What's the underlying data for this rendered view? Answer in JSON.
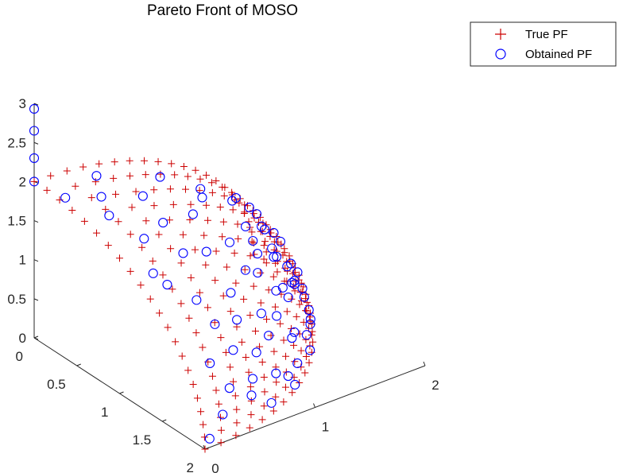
{
  "chart_data": {
    "type": "scatter",
    "title": "Pareto Front of MOSO",
    "projection": "3d",
    "xlim": [
      0,
      2
    ],
    "ylim": [
      0,
      2
    ],
    "zlim": [
      0,
      3
    ],
    "x_ticks": [
      "0",
      "0.5",
      "1",
      "1.5",
      "2"
    ],
    "y_ticks": [
      "0",
      "1",
      "2"
    ],
    "z_ticks": [
      "0",
      "0.5",
      "1",
      "1.5",
      "2",
      "2.5",
      "3"
    ],
    "grid": false,
    "legend_position": "top-right",
    "surface": "sphere-octant, radius 2",
    "series": [
      {
        "name": "True PF",
        "marker": "+",
        "color": "#cc0000",
        "grid_steps": 21
      },
      {
        "name": "Obtained PF",
        "marker": "o",
        "color": "#0000ff",
        "points": [
          [
            0,
            0,
            2
          ],
          [
            0,
            0,
            2.3
          ],
          [
            0,
            0,
            2.65
          ],
          [
            0,
            0,
            2.93
          ],
          [
            0.3,
            0.05,
            1.98
          ],
          [
            0.62,
            0.2,
            1.9
          ],
          [
            0.5,
            0.6,
            1.85
          ],
          [
            0.9,
            0.3,
            1.75
          ],
          [
            0.7,
            0.9,
            1.6
          ],
          [
            1.1,
            0.5,
            1.6
          ],
          [
            0.4,
            1.2,
            1.55
          ],
          [
            1.3,
            0.2,
            1.5
          ],
          [
            1.0,
            1.0,
            1.4
          ],
          [
            0.8,
            1.3,
            1.3
          ],
          [
            1.4,
            0.7,
            1.2
          ],
          [
            0.3,
            1.6,
            1.15
          ],
          [
            1.2,
            1.1,
            1.1
          ],
          [
            1.6,
            0.4,
            1.1
          ],
          [
            0.6,
            1.6,
            1.0
          ],
          [
            1.0,
            1.4,
            1.0
          ],
          [
            1.5,
            0.9,
            0.9
          ],
          [
            1.8,
            0.2,
            0.85
          ],
          [
            0.2,
            1.8,
            0.85
          ],
          [
            1.3,
            1.3,
            0.75
          ],
          [
            0.9,
            1.6,
            0.7
          ],
          [
            1.7,
            0.7,
            0.65
          ],
          [
            0.5,
            1.85,
            0.6
          ],
          [
            1.9,
            0.3,
            0.55
          ],
          [
            1.5,
            1.2,
            0.5
          ],
          [
            1.1,
            1.6,
            0.45
          ],
          [
            1.8,
            0.8,
            0.4
          ],
          [
            0.7,
            1.85,
            0.35
          ],
          [
            1.95,
            0.2,
            0.3
          ],
          [
            1.3,
            1.5,
            0.3
          ],
          [
            1.6,
            1.15,
            0.2
          ],
          [
            0.3,
            1.97,
            0.2
          ],
          [
            1.0,
            1.72,
            0.15
          ],
          [
            1.85,
            0.72,
            0.1
          ],
          [
            1.4,
            1.42,
            0.08
          ],
          [
            1.99,
            0.05,
            0.1
          ],
          [
            0.05,
            1.99,
            0.05
          ],
          [
            1.7,
            1.05,
            0.05
          ],
          [
            0.6,
            1.9,
            0.1
          ],
          [
            1.2,
            1.58,
            0.25
          ],
          [
            0.4,
            0.3,
            1.93
          ],
          [
            0.15,
            0.45,
            1.94
          ],
          [
            0.8,
            0.55,
            1.75
          ],
          [
            1.2,
            0.15,
            1.6
          ],
          [
            0.25,
            0.95,
            1.73
          ],
          [
            1.05,
            0.75,
            1.45
          ],
          [
            0.55,
            1.1,
            1.6
          ],
          [
            1.45,
            0.35,
            1.33
          ],
          [
            0.95,
            1.25,
            1.25
          ],
          [
            1.6,
            0.6,
            1.05
          ],
          [
            0.45,
            1.45,
            1.3
          ],
          [
            1.25,
            0.95,
            1.25
          ],
          [
            1.75,
            0.45,
            0.85
          ],
          [
            0.85,
            1.5,
            0.95
          ],
          [
            1.35,
            1.15,
            0.95
          ],
          [
            1.9,
            0.5,
            0.35
          ],
          [
            0.35,
            1.75,
            0.9
          ],
          [
            1.55,
            1.0,
            0.85
          ],
          [
            1.05,
            1.55,
            0.65
          ],
          [
            1.75,
            0.95,
            0.25
          ],
          [
            0.75,
            1.75,
            0.55
          ],
          [
            1.45,
            1.35,
            0.35
          ],
          [
            1.65,
            0.85,
            0.75
          ],
          [
            0.55,
            1.75,
            0.8
          ],
          [
            1.15,
            1.45,
            0.75
          ],
          [
            1.85,
            0.55,
            0.5
          ],
          [
            0.25,
            1.9,
            0.55
          ],
          [
            1.3,
            1.25,
            0.9
          ],
          [
            0.95,
            1.7,
            0.4
          ],
          [
            1.6,
            1.1,
            0.55
          ]
        ]
      }
    ]
  }
}
